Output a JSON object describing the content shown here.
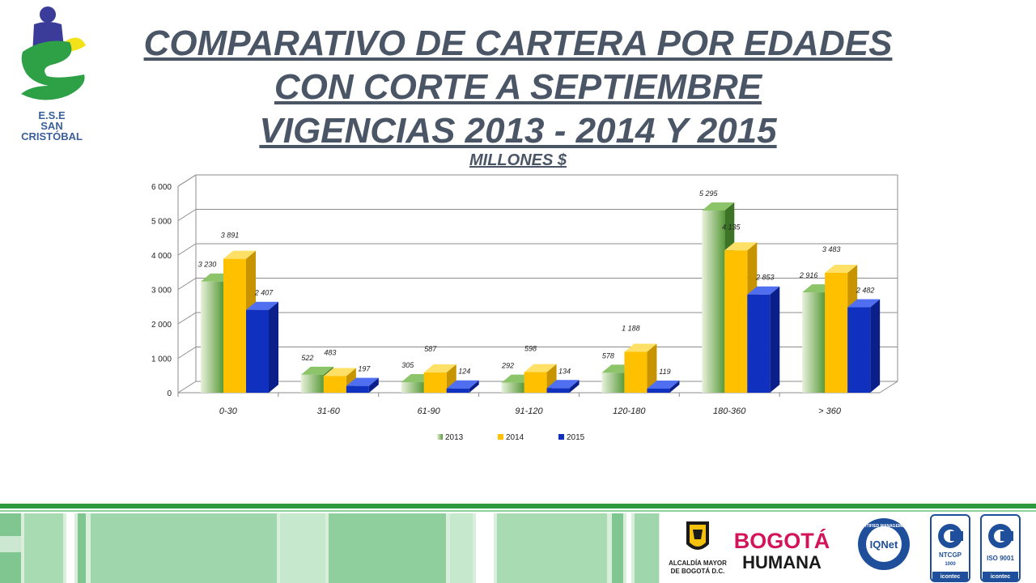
{
  "logo": {
    "line1": "E.S.E",
    "line2": "SAN",
    "line3": "CRISTÓBAL"
  },
  "title_lines": [
    "COMPARATIVO DE CARTERA POR EDADES",
    "CON CORTE  A SEPTIEMBRE",
    "VIGENCIAS 2013 - 2014 Y 2015"
  ],
  "subtitle": "MILLONES $",
  "colors": {
    "s2013": "#5a9a3a",
    "s2014": "#ffc000",
    "s2015": "#1030c0",
    "title": "#4a5566",
    "footer_green": "#2e9a3e"
  },
  "chart_data": {
    "type": "bar",
    "categories": [
      "0-30",
      "31-60",
      "61-90",
      "91-120",
      "120-180",
      "180-360",
      "> 360"
    ],
    "series": [
      {
        "name": "2013",
        "values": [
          3230,
          522,
          305,
          292,
          578,
          5295,
          2916
        ],
        "labels": [
          "3 230",
          "522",
          "305",
          "292",
          "578",
          "5 295",
          "2 916"
        ]
      },
      {
        "name": "2014",
        "values": [
          3891,
          483,
          587,
          598,
          1188,
          4135,
          3483
        ],
        "labels": [
          "3 891",
          "483",
          "587",
          "598",
          "1 188",
          "4 135",
          "3 483"
        ]
      },
      {
        "name": "2015",
        "values": [
          2407,
          197,
          124,
          134,
          119,
          2853,
          2482
        ],
        "labels": [
          "2 407",
          "197",
          "124",
          "134",
          "119",
          "2 853",
          "2 482"
        ]
      }
    ],
    "yticks": [
      "0",
      "1 000",
      "2 000",
      "3 000",
      "4 000",
      "5 000",
      "6 000"
    ],
    "ylim": [
      0,
      6000
    ],
    "grid": true,
    "legend": "bottom",
    "projection": "3d"
  },
  "footer_logos": {
    "alcaldia_line1": "ALCALDÍA MAYOR",
    "alcaldia_line2": "DE BOGOTÁ D.C.",
    "bogota_line1": "BOGOTÁ",
    "bogota_line2": "HUMANA",
    "iqnet": "IQNet",
    "iqnet_ring": "CERTIFIED MANAGEMENT",
    "ntcgp_label": "NTCGP",
    "ntcgp_num": "1000",
    "iso_label": "ISO 9001",
    "icontec": "icontec"
  }
}
